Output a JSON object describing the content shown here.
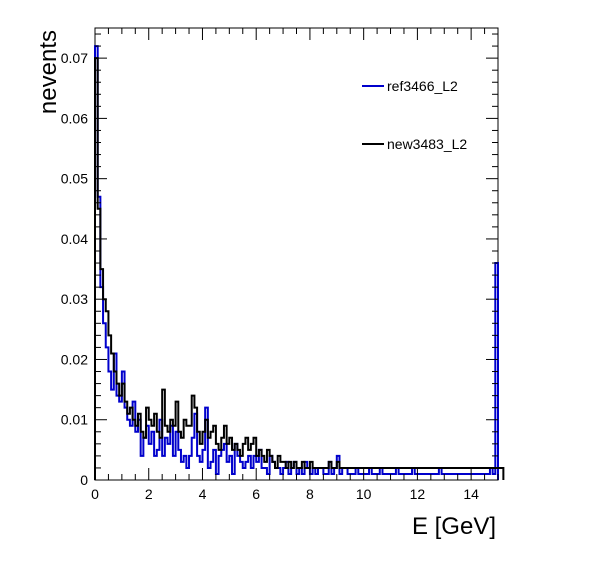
{
  "chart_data": {
    "type": "histogram",
    "title": "",
    "xlabel": "E [GeV]",
    "ylabel": "nevents",
    "xlim": [
      0,
      15
    ],
    "ylim": [
      0,
      0.075
    ],
    "x_ticks": [
      0,
      2,
      4,
      6,
      8,
      10,
      12,
      14
    ],
    "y_ticks": [
      0,
      0.01,
      0.02,
      0.03,
      0.04,
      0.05,
      0.06,
      0.07
    ],
    "y_tick_labels": [
      "0",
      "0.01",
      "0.02",
      "0.03",
      "0.04",
      "0.05",
      "0.06",
      "0.07"
    ],
    "grid": false,
    "legend": {
      "position": "top-right"
    },
    "bin_width": 0.1,
    "series": [
      {
        "name": "ref3466_L2",
        "color": "#0000cc",
        "values": [
          0.072,
          0.047,
          0.032,
          0.026,
          0.022,
          0.018,
          0.015,
          0.021,
          0.014,
          0.013,
          0.018,
          0.012,
          0.01,
          0.009,
          0.013,
          0.008,
          0.01,
          0.004,
          0.007,
          0.009,
          0.006,
          0.008,
          0.004,
          0.005,
          0.01,
          0.004,
          0.007,
          0.006,
          0.009,
          0.004,
          0.008,
          0.005,
          0.003,
          0.004,
          0.002,
          0.004,
          0.007,
          0.011,
          0.004,
          0.003,
          0.005,
          0.012,
          0.002,
          0.003,
          0.005,
          0.001,
          0.004,
          0.005,
          0.006,
          0.003,
          0.004,
          0.001,
          0.006,
          0.004,
          0.003,
          0.002,
          0.003,
          0.004,
          0.002,
          0.004,
          0.003,
          0.005,
          0.002,
          0.002,
          0.001,
          0.004,
          0.003,
          0.002,
          0.002,
          0.001,
          0.002,
          0.003,
          0.001,
          0.002,
          0.003,
          0.001,
          0.002,
          0.001,
          0.003,
          0.002,
          0.001,
          0.002,
          0.001,
          0.002,
          0.002,
          0.001,
          0.001,
          0.003,
          0.001,
          0.002,
          0.004,
          0.001,
          0.002,
          0.002,
          0.001,
          0.001,
          0.001,
          0.002,
          0.001,
          0.001,
          0.001,
          0.001,
          0.002,
          0.001,
          0.001,
          0.001,
          0.002,
          0.001,
          0.001,
          0.001,
          0.001,
          0.001,
          0.002,
          0.001,
          0.001,
          0.001,
          0.001,
          0.001,
          0.002,
          0.001,
          0.001,
          0.001,
          0.001,
          0.001,
          0.001,
          0.001,
          0.001,
          0.001,
          0.002,
          0.001,
          0.001,
          0.001,
          0.001,
          0.001,
          0.001,
          0.001,
          0.001,
          0.001,
          0.001,
          0.001,
          0.001,
          0.001,
          0.001,
          0.001,
          0.001,
          0.001,
          0.001,
          0.002,
          0.001,
          0.036
        ]
      },
      {
        "name": "new3483_L2",
        "color": "#000000",
        "values": [
          0.07,
          0.045,
          0.035,
          0.03,
          0.028,
          0.024,
          0.021,
          0.018,
          0.016,
          0.014,
          0.016,
          0.013,
          0.011,
          0.012,
          0.01,
          0.009,
          0.011,
          0.008,
          0.007,
          0.012,
          0.01,
          0.009,
          0.011,
          0.008,
          0.007,
          0.015,
          0.009,
          0.008,
          0.01,
          0.009,
          0.013,
          0.008,
          0.007,
          0.01,
          0.009,
          0.009,
          0.014,
          0.012,
          0.008,
          0.006,
          0.008,
          0.01,
          0.007,
          0.008,
          0.009,
          0.006,
          0.005,
          0.007,
          0.009,
          0.006,
          0.007,
          0.005,
          0.006,
          0.005,
          0.004,
          0.006,
          0.007,
          0.005,
          0.006,
          0.007,
          0.004,
          0.005,
          0.004,
          0.003,
          0.005,
          0.004,
          0.003,
          0.002,
          0.004,
          0.003,
          0.003,
          0.002,
          0.003,
          0.002,
          0.003,
          0.002,
          0.002,
          0.003,
          0.002,
          0.002,
          0.003,
          0.002,
          0.002,
          0.002,
          0.002,
          0.002,
          0.002,
          0.003,
          0.002,
          0.002,
          0.003,
          0.002,
          0.002,
          0.002,
          0.002,
          0.002,
          0.002,
          0.002,
          0.002,
          0.002,
          0.002,
          0.002,
          0.002,
          0.002,
          0.002,
          0.002,
          0.002,
          0.002,
          0.002,
          0.002,
          0.002,
          0.002,
          0.002,
          0.002,
          0.002,
          0.002,
          0.002,
          0.002,
          0.002,
          0.002,
          0.002,
          0.002,
          0.002,
          0.002,
          0.002,
          0.002,
          0.002,
          0.002,
          0.002,
          0.002,
          0.002,
          0.002,
          0.002,
          0.002,
          0.002,
          0.002,
          0.002,
          0.002,
          0.002,
          0.002,
          0.002,
          0.002,
          0.002,
          0.002,
          0.002,
          0.002,
          0.002,
          0.002,
          0.002,
          0.002,
          0.002,
          0.002
        ]
      }
    ]
  }
}
